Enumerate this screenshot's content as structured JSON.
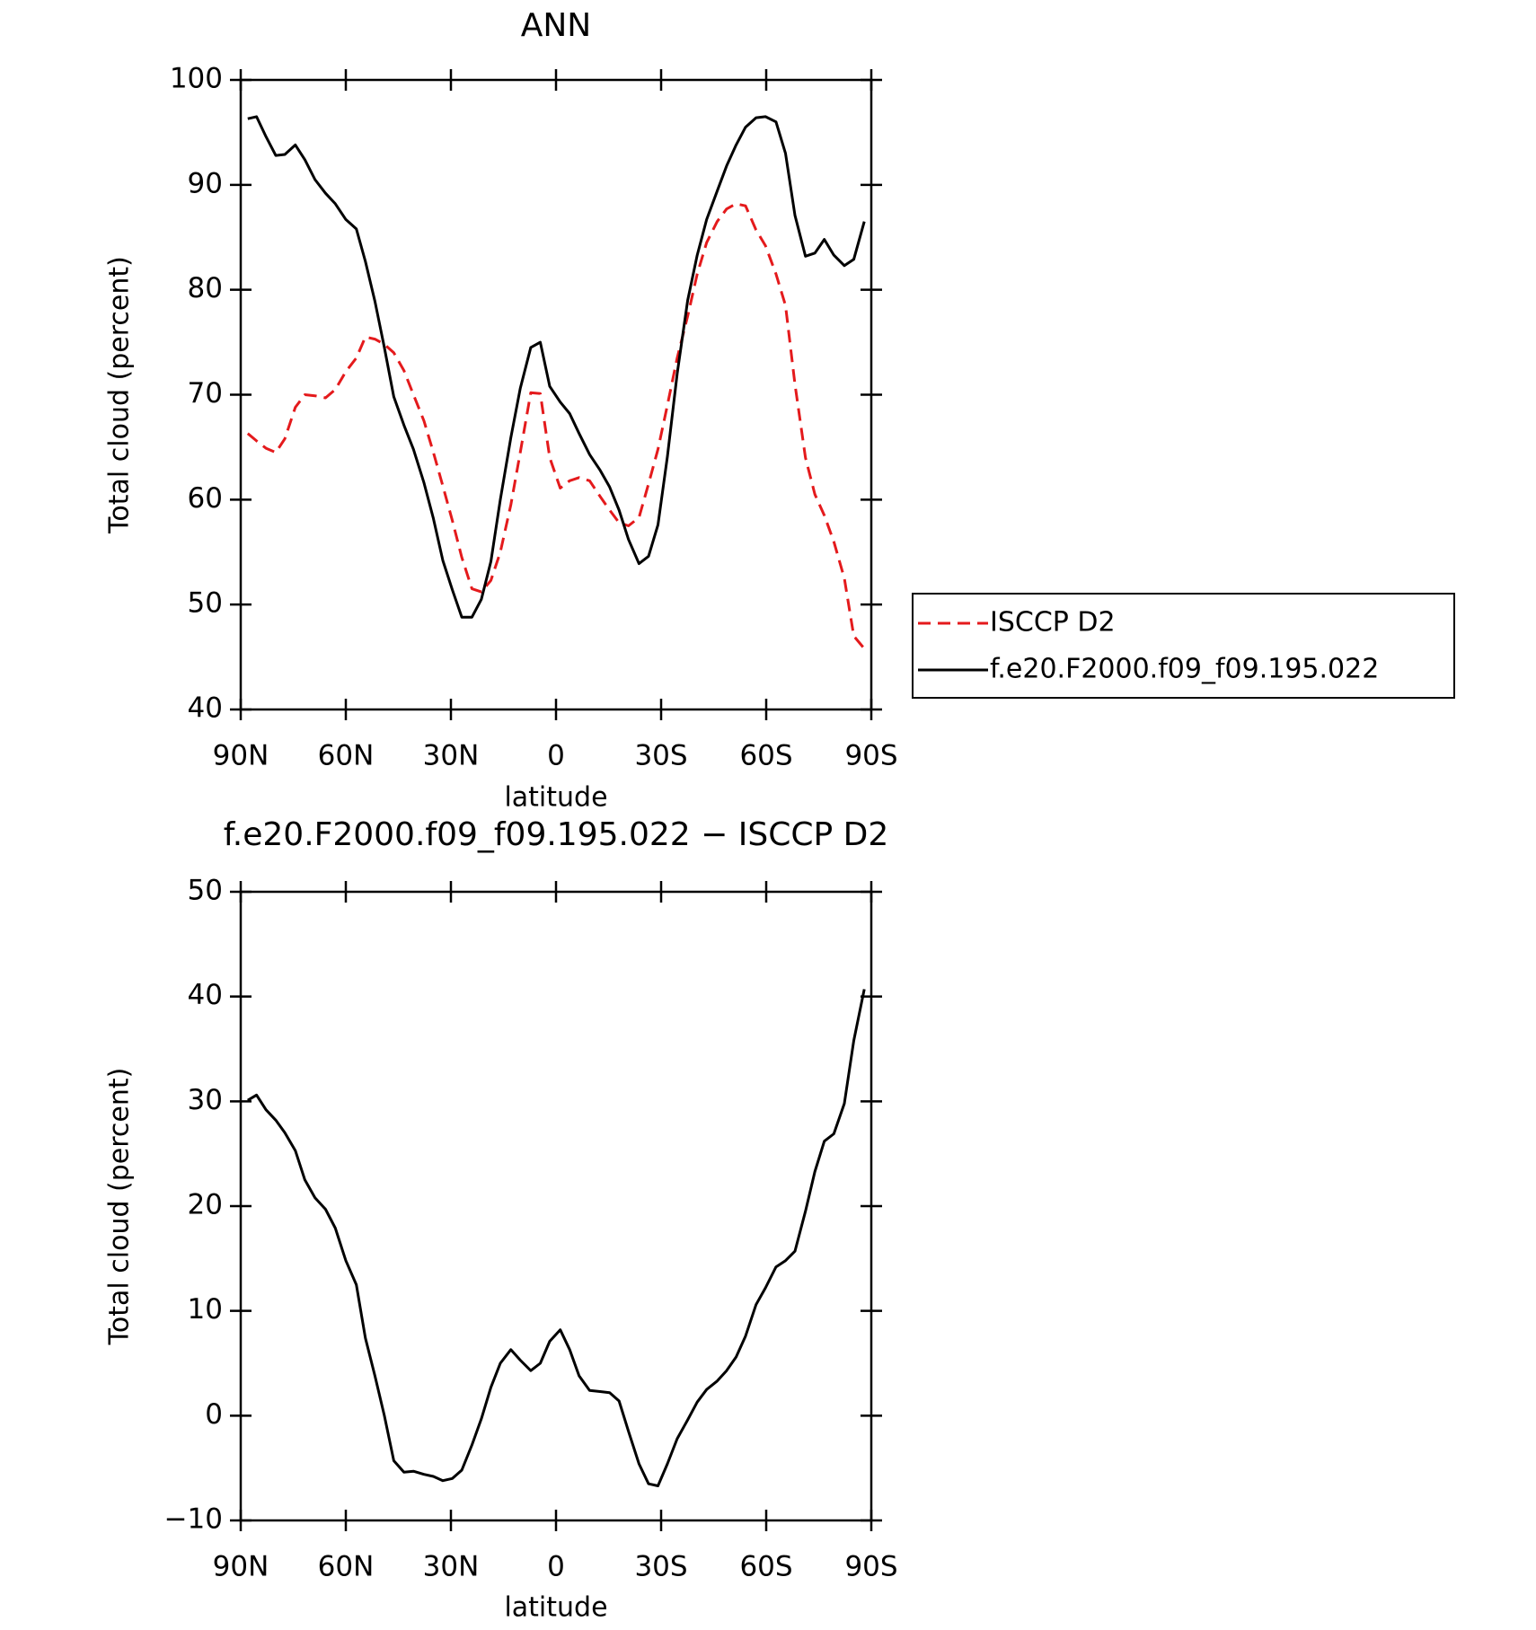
{
  "chart_data": [
    {
      "type": "line",
      "title": "ANN",
      "xlabel": "latitude",
      "ylabel": "Total cloud (percent)",
      "x": [
        88,
        85.5,
        82.8,
        80,
        77.4,
        74.4,
        71.7,
        68.8,
        65.8,
        63,
        60,
        57,
        54.4,
        51.7,
        49,
        46.3,
        43.4,
        40.7,
        37.7,
        35,
        32.3,
        29.6,
        26.9,
        24,
        21.3,
        18.6,
        15.9,
        12.9,
        10.2,
        7.2,
        4.5,
        1.8,
        -1.2,
        -3.9,
        -6.6,
        -9.6,
        -12.6,
        -15.3,
        -18,
        -20.7,
        -23.7,
        -26.4,
        -29.1,
        -31.8,
        -34.6,
        -37.6,
        -40.3,
        -43,
        -46,
        -48.7,
        -51.4,
        -54.1,
        -57.1,
        -59.8,
        -62.8,
        -65.5,
        -68.2,
        -71.2,
        -73.9,
        -76.6,
        -79.3,
        -82.3,
        -85,
        -88
      ],
      "series": [
        {
          "name": "ISCCP D2",
          "color": "#e41a1c",
          "style": "dashed",
          "values": [
            66.3,
            65.6,
            64.9,
            64.5,
            65.8,
            68.8,
            70,
            69.9,
            69.7,
            70.5,
            72.2,
            73.5,
            75.5,
            75.3,
            74.8,
            74,
            72.3,
            70,
            67.5,
            64.5,
            61.3,
            58,
            54.5,
            51.5,
            51.2,
            52.3,
            55,
            59.5,
            64.5,
            70.2,
            70.1,
            64,
            61.1,
            61.8,
            62.1,
            61.8,
            60.3,
            59,
            57.8,
            57.5,
            58.3,
            61.5,
            64.8,
            69,
            73.5,
            77.5,
            81.5,
            84.5,
            86.5,
            87.7,
            88.2,
            88,
            85.7,
            84.2,
            81.5,
            78.5,
            71,
            64,
            60.5,
            58.5,
            56,
            52.5,
            47,
            45.8
          ]
        },
        {
          "name": "f.e20.F2000.f09_f09.195.022",
          "color": "#000000",
          "style": "solid",
          "values": [
            96.3,
            96.5,
            94.6,
            92.8,
            92.9,
            93.8,
            92.4,
            90.5,
            89.2,
            88.2,
            86.7,
            85.8,
            82.7,
            78.9,
            74.5,
            69.8,
            67.1,
            64.8,
            61.6,
            58.2,
            54.2,
            51.4,
            48.8,
            48.8,
            50.5,
            54.1,
            60,
            65.9,
            70.6,
            74.5,
            75,
            70.8,
            69.3,
            68.2,
            66.3,
            64.3,
            62.8,
            61.2,
            59,
            56.2,
            53.9,
            54.6,
            57.6,
            64.1,
            72,
            79,
            83.3,
            86.7,
            89.4,
            91.8,
            93.8,
            95.5,
            96.4,
            96.5,
            96,
            93,
            87.1,
            83.2,
            83.5,
            84.8,
            83.3,
            82.3,
            82.9,
            86.5
          ]
        }
      ],
      "xlim": [
        90,
        -90
      ],
      "xticks": [
        {
          "value": 90,
          "label": "90N"
        },
        {
          "value": 60,
          "label": "60N"
        },
        {
          "value": 30,
          "label": "30N"
        },
        0,
        {
          "value": -30,
          "label": "30S"
        },
        {
          "value": -60,
          "label": "60S"
        },
        {
          "value": -90,
          "label": "90S"
        }
      ],
      "ylim": [
        40,
        100
      ],
      "yticks": [
        40,
        50,
        60,
        70,
        80,
        90,
        100
      ],
      "legend": "right"
    },
    {
      "type": "line",
      "title": "f.e20.F2000.f09_f09.195.022 − ISCCP D2",
      "xlabel": "latitude",
      "ylabel": "Total cloud (percent)",
      "x": [
        88,
        85.5,
        82.8,
        80,
        77.4,
        74.4,
        71.7,
        68.8,
        65.8,
        63,
        60,
        57,
        54.4,
        51.7,
        49,
        46.3,
        43.4,
        40.7,
        37.7,
        35,
        32.3,
        29.6,
        26.9,
        24,
        21.3,
        18.6,
        15.9,
        12.9,
        10.2,
        7.2,
        4.5,
        1.8,
        -1.2,
        -3.9,
        -6.6,
        -9.6,
        -12.6,
        -15.3,
        -18,
        -20.7,
        -23.7,
        -26.4,
        -29.1,
        -31.8,
        -34.6,
        -37.6,
        -40.3,
        -43,
        -46,
        -48.7,
        -51.4,
        -54.1,
        -57.1,
        -59.8,
        -62.8,
        -65.5,
        -68.2,
        -71.2,
        -73.9,
        -76.6,
        -79.3,
        -82.3,
        -85,
        -88
      ],
      "series": [
        {
          "color": "#000000",
          "style": "solid",
          "values": [
            30.1,
            30.6,
            29.2,
            28.2,
            27,
            25.3,
            22.5,
            20.8,
            19.7,
            17.9,
            14.8,
            12.5,
            7.4,
            3.8,
            0,
            -4.3,
            -5.4,
            -5.3,
            -5.6,
            -5.8,
            -6.2,
            -6,
            -5.2,
            -2.8,
            -0.3,
            2.7,
            5,
            6.3,
            5.3,
            4.3,
            5,
            7.1,
            8.2,
            6.3,
            3.8,
            2.4,
            2.3,
            2.2,
            1.4,
            -1.5,
            -4.6,
            -6.5,
            -6.7,
            -4.6,
            -2.2,
            -0.4,
            1.3,
            2.5,
            3.3,
            4.3,
            5.6,
            7.6,
            10.6,
            12.2,
            14.2,
            14.8,
            15.7,
            19.5,
            23.3,
            26.2,
            26.9,
            29.8,
            35.8,
            40.7
          ]
        }
      ],
      "xlim": [
        90,
        -90
      ],
      "xticks": [
        {
          "value": 90,
          "label": "90N"
        },
        {
          "value": 60,
          "label": "60N"
        },
        {
          "value": 30,
          "label": "30N"
        },
        0,
        {
          "value": -30,
          "label": "30S"
        },
        {
          "value": -60,
          "label": "60S"
        },
        {
          "value": -90,
          "label": "90S"
        }
      ],
      "ylim": [
        -10,
        50
      ],
      "yticks": [
        {
          "value": -10,
          "label": "−10"
        },
        0,
        10,
        20,
        30,
        40,
        50
      ]
    }
  ]
}
